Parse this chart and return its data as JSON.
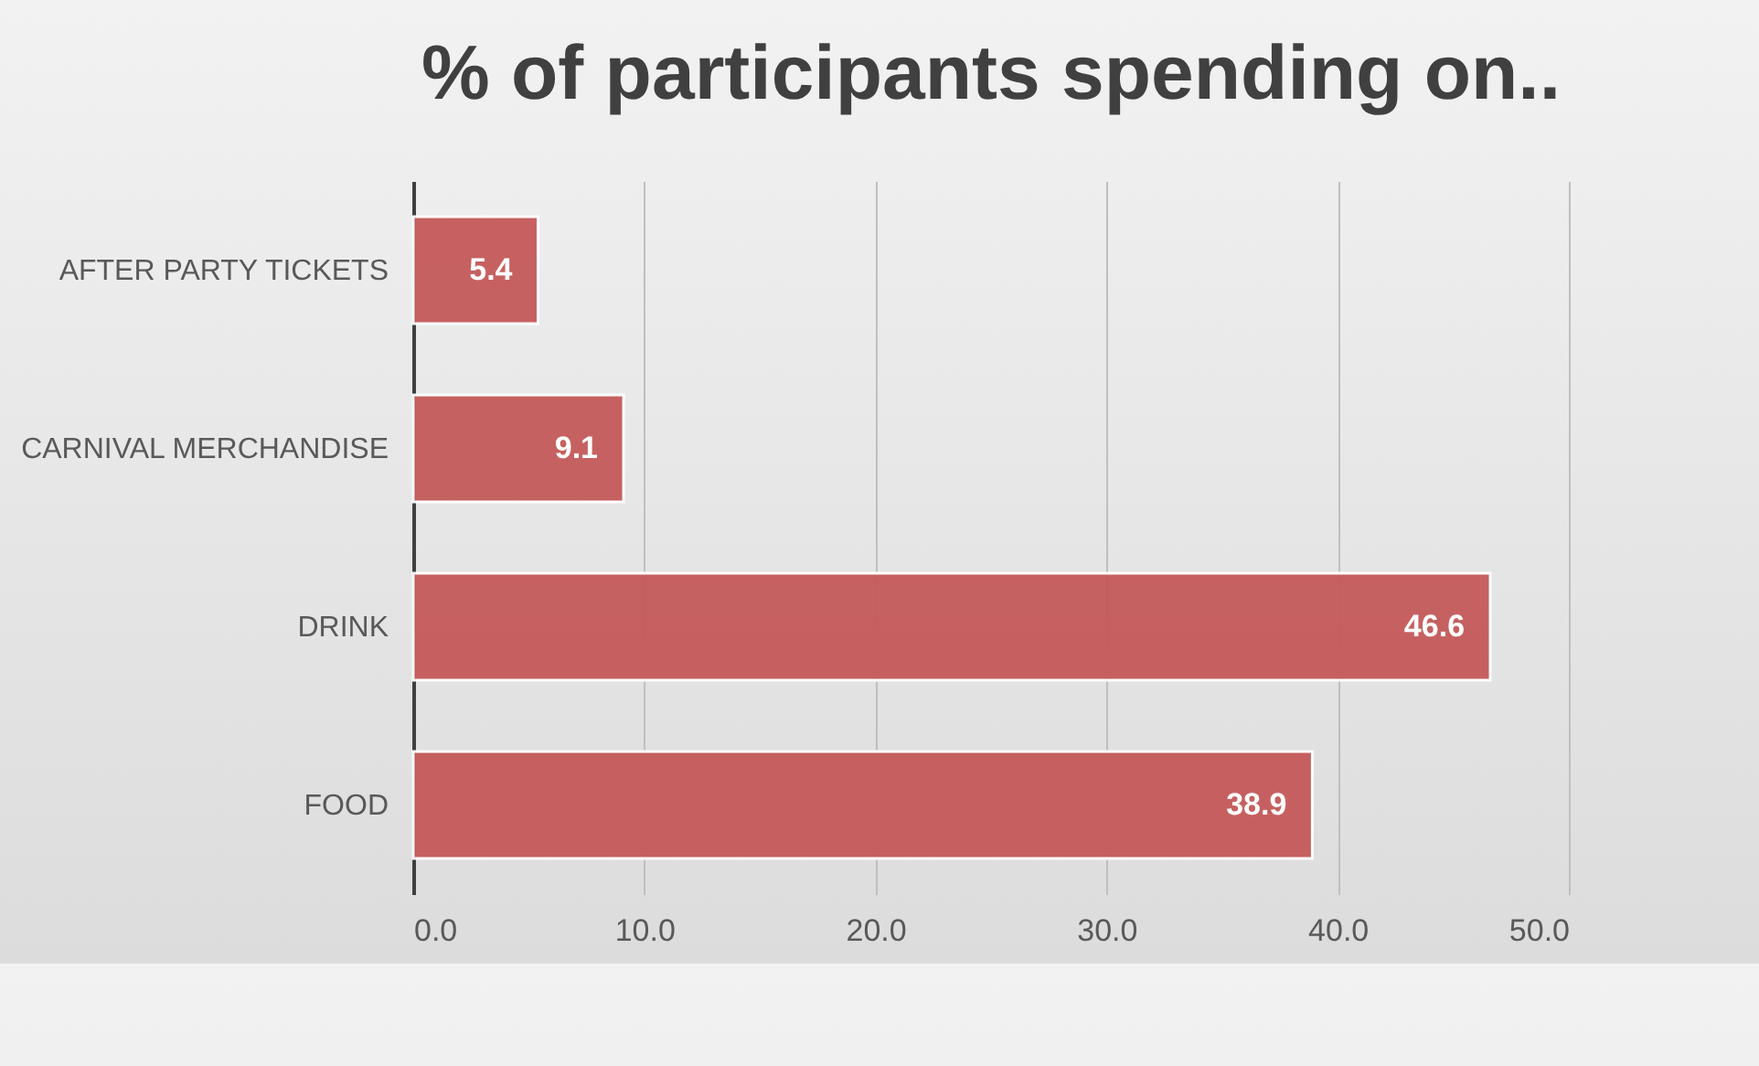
{
  "chart_data": {
    "type": "bar",
    "orientation": "horizontal",
    "title": "% of participants spending on..",
    "categories": [
      "AFTER PARTY TICKETS",
      "CARNIVAL MERCHANDISE",
      "DRINK",
      "FOOD"
    ],
    "values": [
      5.4,
      9.1,
      46.6,
      38.9
    ],
    "color": "#c55a5a",
    "xlim": [
      0,
      50
    ],
    "xticks": [
      {
        "value": 0,
        "label": "0.0"
      },
      {
        "value": 10,
        "label": "10.0"
      },
      {
        "value": 20,
        "label": "20.0"
      },
      {
        "value": 30,
        "label": "30.0"
      },
      {
        "value": 40,
        "label": "40.0"
      },
      {
        "value": 50,
        "label": "50.0"
      }
    ],
    "grid": "x",
    "data_labels": true
  }
}
